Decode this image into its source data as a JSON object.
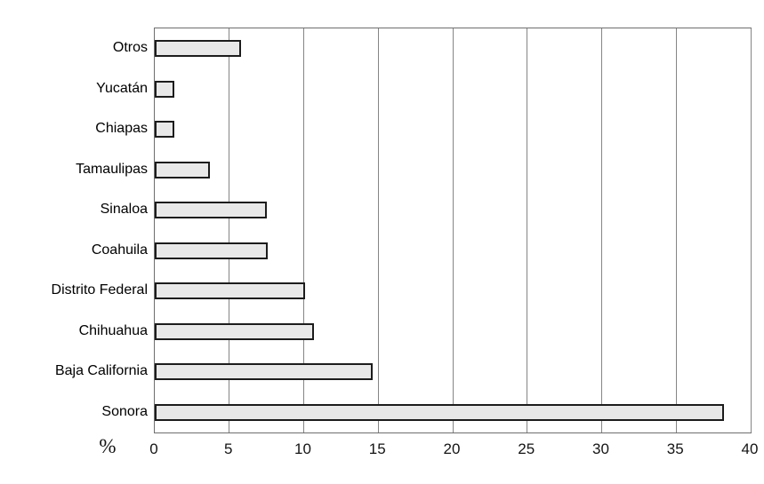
{
  "chart_data": {
    "type": "bar",
    "orientation": "horizontal",
    "title": "",
    "xlabel": "%",
    "ylabel": "",
    "categories": [
      "Otros",
      "Yucatán",
      "Chiapas",
      "Tamaulipas",
      "Sinaloa",
      "Coahuila",
      "Distrito Federal",
      "Chihuahua",
      "Baja California",
      "Sonora"
    ],
    "values": [
      5.8,
      1.3,
      1.3,
      3.7,
      7.5,
      7.6,
      10.1,
      10.7,
      14.6,
      38.2
    ],
    "xlim": [
      0,
      40
    ],
    "x_ticks": [
      0,
      5,
      10,
      15,
      20,
      25,
      30,
      35,
      40
    ],
    "grid": "vertical",
    "legend": "none",
    "colors": {
      "bar_fill": "#e8e8e8",
      "bar_border": "#1c1c1c",
      "gridline": "#858585",
      "plot_border": "#6e6e6e",
      "text": "#000000",
      "background": "#ffffff"
    }
  }
}
